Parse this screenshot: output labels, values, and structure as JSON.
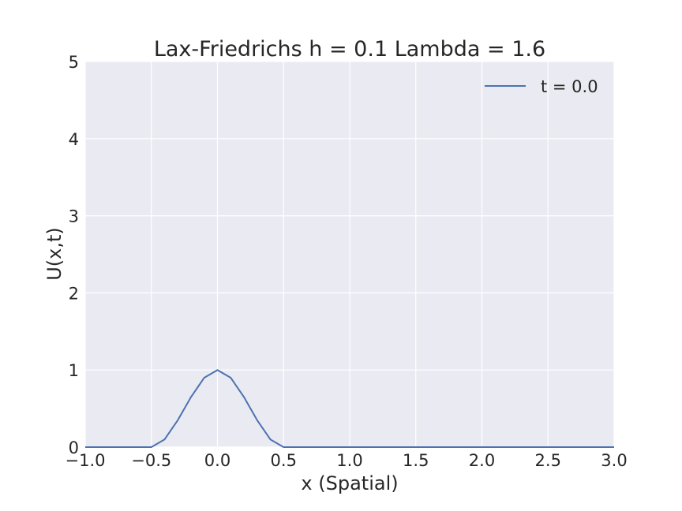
{
  "chart_data": {
    "type": "line",
    "title": "Lax-Friedrichs h = 0.1 Lambda = 1.6",
    "xlabel": "x (Spatial)",
    "ylabel": "U(x,t)",
    "xlim": [
      -1.0,
      3.0
    ],
    "ylim": [
      0,
      5
    ],
    "xticks": [
      -1.0,
      -0.5,
      0.0,
      0.5,
      1.0,
      1.5,
      2.0,
      2.5,
      3.0
    ],
    "xtick_labels": [
      "−1.0",
      "−0.5",
      "0.0",
      "0.5",
      "1.0",
      "1.5",
      "2.0",
      "2.5",
      "3.0"
    ],
    "yticks": [
      0,
      1,
      2,
      3,
      4,
      5
    ],
    "ytick_labels": [
      "0",
      "1",
      "2",
      "3",
      "4",
      "5"
    ],
    "grid": true,
    "legend_position": "top-right",
    "series": [
      {
        "name": "t = 0.0",
        "color": "#4c72b0",
        "x": [
          -1.0,
          -0.9,
          -0.8,
          -0.7,
          -0.6,
          -0.5,
          -0.4,
          -0.3,
          -0.2,
          -0.1,
          0.0,
          0.1,
          0.2,
          0.3,
          0.4,
          0.5,
          0.6,
          0.7,
          0.8,
          0.9,
          1.0,
          1.1,
          1.2,
          1.3,
          1.4,
          1.5,
          1.6,
          1.7,
          1.8,
          1.9,
          2.0,
          2.1,
          2.2,
          2.3,
          2.4,
          2.5,
          2.6,
          2.7,
          2.8,
          2.9,
          3.0
        ],
        "y": [
          0,
          0,
          0,
          0,
          0,
          0,
          0.1,
          0.35,
          0.65,
          0.9,
          1.0,
          0.9,
          0.65,
          0.35,
          0.1,
          0,
          0,
          0,
          0,
          0,
          0,
          0,
          0,
          0,
          0,
          0,
          0,
          0,
          0,
          0,
          0,
          0,
          0,
          0,
          0,
          0,
          0,
          0,
          0,
          0,
          0
        ]
      }
    ],
    "colors": {
      "background": "#eaeaf2",
      "grid": "#ffffff",
      "text": "#262626"
    }
  }
}
